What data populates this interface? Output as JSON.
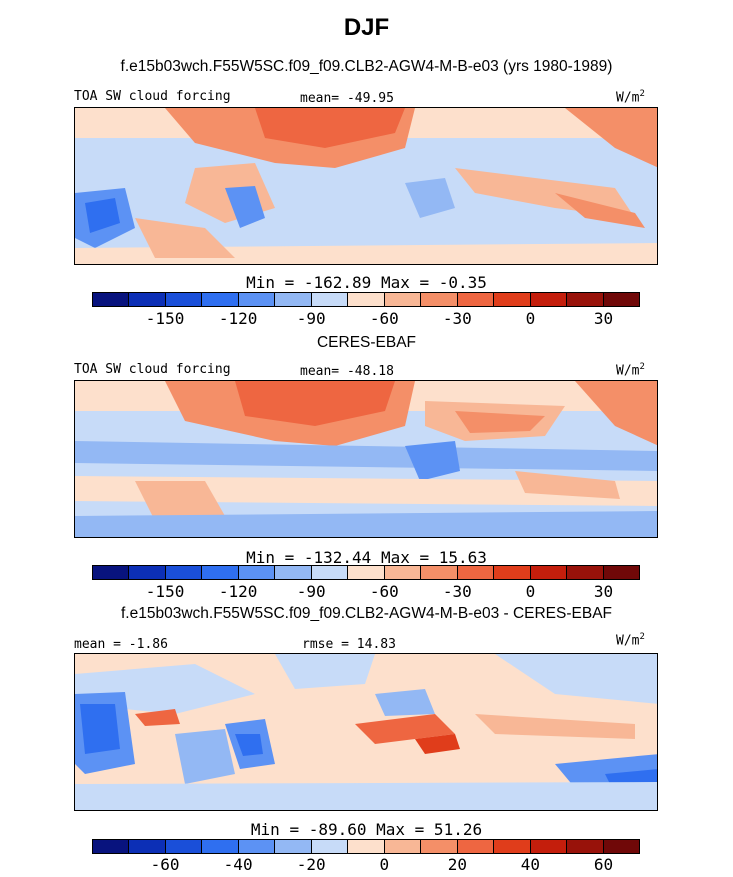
{
  "figure_title": "DJF",
  "palette": [
    "#08137e",
    "#0c2fb6",
    "#1a4fd9",
    "#2f6ff0",
    "#5c92f4",
    "#93b8f4",
    "#c7dbf8",
    "#fde0cc",
    "#f8b796",
    "#f48f68",
    "#ee6641",
    "#e03d1b",
    "#c41e0c",
    "#98120a",
    "#700808"
  ],
  "panels": [
    {
      "id": "model",
      "title": "f.e15b03wch.F55W5SC.f09_f09.CLB2-AGW4-M-B-e03 (yrs 1980-1989)",
      "left_label": "TOA SW cloud forcing",
      "center_label": "mean= -49.95",
      "units_label": "W/m",
      "units_sup": "2",
      "minmax": "Min = -162.89 Max =  -0.35",
      "colorbar_ticks": [
        "-150",
        "-120",
        "-90",
        "-60",
        "-30",
        "0",
        "30"
      ],
      "colorbar_tick_slots": [
        2,
        4,
        6,
        8,
        10,
        12,
        14
      ]
    },
    {
      "id": "obs",
      "title": "CERES-EBAF",
      "left_label": "TOA SW cloud forcing",
      "center_label": "mean= -48.18",
      "units_label": "W/m",
      "units_sup": "2",
      "minmax": "Min = -132.44 Max =  15.63",
      "colorbar_ticks": [
        "-150",
        "-120",
        "-90",
        "-60",
        "-30",
        "0",
        "30"
      ],
      "colorbar_tick_slots": [
        2,
        4,
        6,
        8,
        10,
        12,
        14
      ]
    },
    {
      "id": "diff",
      "title": "f.e15b03wch.F55W5SC.f09_f09.CLB2-AGW4-M-B-e03 - CERES-EBAF",
      "left_label": "mean = -1.86",
      "center_label": "rmse =  14.83",
      "units_label": "W/m",
      "units_sup": "2",
      "minmax": "Min = -89.60 Max =  51.26",
      "colorbar_ticks": [
        "-60",
        "-40",
        "-20",
        "0",
        "20",
        "40",
        "60"
      ],
      "colorbar_tick_slots": [
        2,
        4,
        6,
        8,
        10,
        12,
        14
      ]
    }
  ],
  "chart_data": [
    {
      "type": "heatmap",
      "title": "f.e15b03wch.F55W5SC.f09_f09.CLB2-AGW4-M-B-e03 (yrs 1980-1989)",
      "variable": "TOA SW cloud forcing",
      "units": "W/m2",
      "mean": -49.95,
      "min": -162.89,
      "max": -0.35,
      "levels": [
        -165,
        -150,
        -135,
        -120,
        -105,
        -90,
        -75,
        -60,
        -45,
        -30,
        -15,
        0,
        15,
        30,
        45
      ]
    },
    {
      "type": "heatmap",
      "title": "CERES-EBAF",
      "variable": "TOA SW cloud forcing",
      "units": "W/m2",
      "mean": -48.18,
      "min": -132.44,
      "max": 15.63,
      "levels": [
        -165,
        -150,
        -135,
        -120,
        -105,
        -90,
        -75,
        -60,
        -45,
        -30,
        -15,
        0,
        15,
        30,
        45
      ]
    },
    {
      "type": "heatmap",
      "title": "f.e15b03wch.F55W5SC.f09_f09.CLB2-AGW4-M-B-e03 - CERES-EBAF",
      "variable": "difference",
      "units": "W/m2",
      "mean": -1.86,
      "rmse": 14.83,
      "min": -89.6,
      "max": 51.26,
      "levels": [
        -70,
        -60,
        -50,
        -40,
        -30,
        -20,
        -10,
        0,
        10,
        20,
        30,
        40,
        50,
        60,
        70
      ]
    }
  ]
}
